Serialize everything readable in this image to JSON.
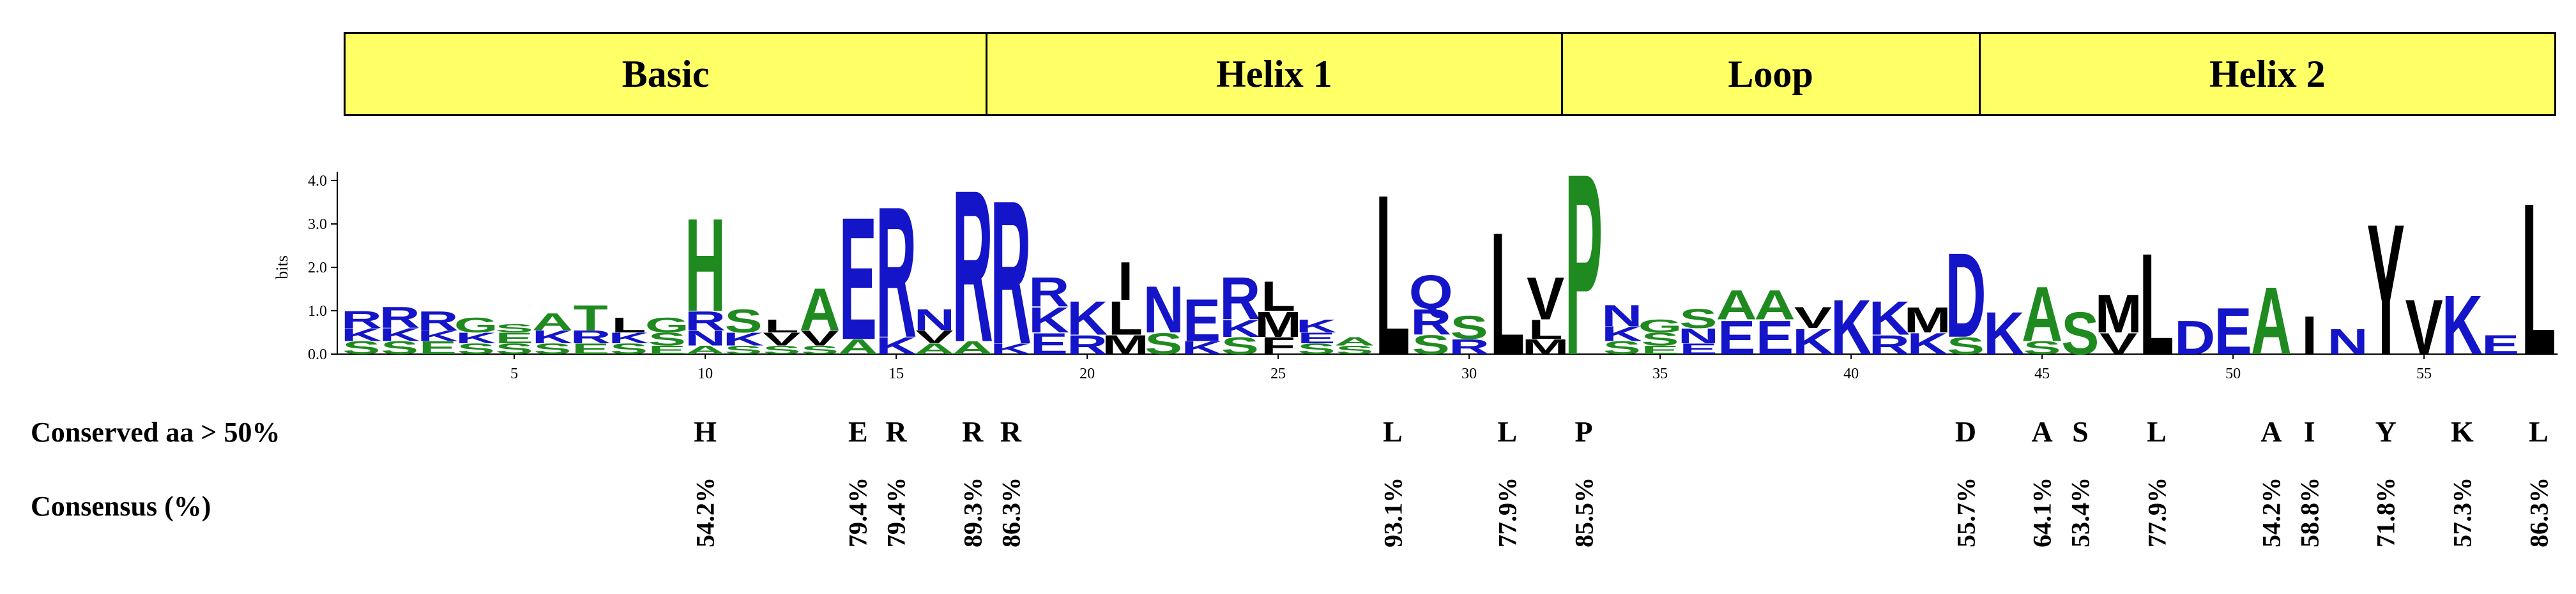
{
  "domains": [
    {
      "label": "Basic"
    },
    {
      "label": "Helix 1"
    },
    {
      "label": "Loop"
    },
    {
      "label": "Helix 2"
    }
  ],
  "logo": {
    "ylabel": "bits",
    "yticks": [
      "0.0",
      "1.0",
      "2.0",
      "3.0",
      "4.0"
    ],
    "xticks": [
      "5",
      "10",
      "15",
      "20",
      "25",
      "30",
      "35",
      "40",
      "45",
      "50",
      "55"
    ],
    "colors": {
      "green": "#1f8a1f",
      "blue": "#1414c8",
      "black": "#000000"
    },
    "columns": [
      {
        "pos": 1,
        "stack": [
          [
            "S",
            0.3,
            "green"
          ],
          [
            "K",
            0.3,
            "blue"
          ],
          [
            "R",
            0.4,
            "blue"
          ]
        ]
      },
      {
        "pos": 2,
        "stack": [
          [
            "S",
            0.3,
            "green"
          ],
          [
            "K",
            0.3,
            "blue"
          ],
          [
            "R",
            0.5,
            "blue"
          ]
        ]
      },
      {
        "pos": 3,
        "stack": [
          [
            "E",
            0.3,
            "green"
          ],
          [
            "K",
            0.25,
            "blue"
          ],
          [
            "R",
            0.45,
            "blue"
          ]
        ]
      },
      {
        "pos": 4,
        "stack": [
          [
            "S",
            0.25,
            "green"
          ],
          [
            "K",
            0.25,
            "blue"
          ],
          [
            "G",
            0.35,
            "green"
          ]
        ]
      },
      {
        "pos": 5,
        "stack": [
          [
            "S",
            0.25,
            "green"
          ],
          [
            "E",
            0.25,
            "green"
          ],
          [
            "S",
            0.2,
            "green"
          ]
        ]
      },
      {
        "pos": 6,
        "stack": [
          [
            "S",
            0.25,
            "green"
          ],
          [
            "K",
            0.3,
            "blue"
          ],
          [
            "A",
            0.4,
            "green"
          ]
        ]
      },
      {
        "pos": 7,
        "stack": [
          [
            "E",
            0.25,
            "green"
          ],
          [
            "R",
            0.3,
            "blue"
          ],
          [
            "T",
            0.6,
            "green"
          ]
        ]
      },
      {
        "pos": 8,
        "stack": [
          [
            "S",
            0.25,
            "green"
          ],
          [
            "K",
            0.25,
            "blue"
          ],
          [
            "L",
            0.35,
            "black"
          ]
        ]
      },
      {
        "pos": 9,
        "stack": [
          [
            "E",
            0.2,
            "green"
          ],
          [
            "S",
            0.3,
            "green"
          ],
          [
            "G",
            0.35,
            "green"
          ]
        ]
      },
      {
        "pos": 10,
        "stack": [
          [
            "A",
            0.2,
            "green"
          ],
          [
            "N",
            0.35,
            "blue"
          ],
          [
            "R",
            0.45,
            "blue"
          ],
          [
            "H",
            2.2,
            "green"
          ]
        ]
      },
      {
        "pos": 11,
        "stack": [
          [
            "S",
            0.2,
            "green"
          ],
          [
            "K",
            0.3,
            "blue"
          ],
          [
            "S",
            0.55,
            "green"
          ]
        ]
      },
      {
        "pos": 12,
        "stack": [
          [
            "S",
            0.2,
            "green"
          ],
          [
            "V",
            0.3,
            "black"
          ],
          [
            "L",
            0.3,
            "black"
          ]
        ]
      },
      {
        "pos": 13,
        "stack": [
          [
            "S",
            0.2,
            "green"
          ],
          [
            "V",
            0.35,
            "black"
          ],
          [
            "A",
            1.0,
            "green"
          ]
        ]
      },
      {
        "pos": 14,
        "stack": [
          [
            "A",
            0.35,
            "green"
          ],
          [
            "E",
            2.9,
            "blue"
          ]
        ]
      },
      {
        "pos": 15,
        "stack": [
          [
            "K",
            0.4,
            "blue"
          ],
          [
            "R",
            3.1,
            "blue"
          ]
        ]
      },
      {
        "pos": 16,
        "stack": [
          [
            "A",
            0.25,
            "green"
          ],
          [
            "V",
            0.3,
            "black"
          ],
          [
            "N",
            0.5,
            "blue"
          ]
        ]
      },
      {
        "pos": 17,
        "stack": [
          [
            "A",
            0.3,
            "green"
          ],
          [
            "R",
            3.6,
            "blue"
          ]
        ]
      },
      {
        "pos": 18,
        "stack": [
          [
            "K",
            0.25,
            "blue"
          ],
          [
            "R",
            3.4,
            "blue"
          ]
        ]
      },
      {
        "pos": 19,
        "stack": [
          [
            "E",
            0.5,
            "blue"
          ],
          [
            "K",
            0.6,
            "blue"
          ],
          [
            "R",
            0.7,
            "blue"
          ]
        ]
      },
      {
        "pos": 20,
        "stack": [
          [
            "R",
            0.45,
            "blue"
          ],
          [
            "K",
            0.8,
            "blue"
          ]
        ]
      },
      {
        "pos": 21,
        "stack": [
          [
            "M",
            0.45,
            "black"
          ],
          [
            "L",
            0.8,
            "black"
          ],
          [
            "I",
            0.9,
            "black"
          ]
        ]
      },
      {
        "pos": 22,
        "stack": [
          [
            "S",
            0.5,
            "green"
          ],
          [
            "N",
            1.1,
            "blue"
          ]
        ]
      },
      {
        "pos": 23,
        "stack": [
          [
            "K",
            0.3,
            "blue"
          ],
          [
            "E",
            1.0,
            "blue"
          ]
        ]
      },
      {
        "pos": 24,
        "stack": [
          [
            "S",
            0.4,
            "green"
          ],
          [
            "K",
            0.4,
            "blue"
          ],
          [
            "R",
            1.0,
            "blue"
          ]
        ]
      },
      {
        "pos": 25,
        "stack": [
          [
            "F",
            0.4,
            "black"
          ],
          [
            "M",
            0.6,
            "black"
          ],
          [
            "L",
            0.7,
            "black"
          ]
        ]
      },
      {
        "pos": 26,
        "stack": [
          [
            "S",
            0.25,
            "green"
          ],
          [
            "E",
            0.25,
            "blue"
          ],
          [
            "K",
            0.3,
            "blue"
          ]
        ]
      },
      {
        "pos": 27,
        "stack": [
          [
            "S",
            0.2,
            "green"
          ],
          [
            "A",
            0.2,
            "green"
          ]
        ]
      },
      {
        "pos": 28,
        "stack": [
          [
            "L",
            3.8,
            "black"
          ]
        ]
      },
      {
        "pos": 29,
        "stack": [
          [
            "S",
            0.45,
            "green"
          ],
          [
            "R",
            0.6,
            "blue"
          ],
          [
            "Q",
            0.8,
            "blue"
          ]
        ]
      },
      {
        "pos": 30,
        "stack": [
          [
            "R",
            0.35,
            "blue"
          ],
          [
            "S",
            0.55,
            "green"
          ]
        ]
      },
      {
        "pos": 31,
        "stack": [
          [
            "L",
            2.9,
            "black"
          ]
        ]
      },
      {
        "pos": 32,
        "stack": [
          [
            "M",
            0.35,
            "black"
          ],
          [
            "L",
            0.45,
            "black"
          ],
          [
            "V",
            1.0,
            "black"
          ]
        ]
      },
      {
        "pos": 33,
        "stack": [
          [
            "P",
            4.3,
            "green"
          ]
        ]
      },
      {
        "pos": 34,
        "stack": [
          [
            "S",
            0.3,
            "green"
          ],
          [
            "K",
            0.35,
            "blue"
          ],
          [
            "N",
            0.5,
            "blue"
          ]
        ]
      },
      {
        "pos": 35,
        "stack": [
          [
            "E",
            0.2,
            "green"
          ],
          [
            "S",
            0.3,
            "green"
          ],
          [
            "G",
            0.3,
            "green"
          ]
        ]
      },
      {
        "pos": 36,
        "stack": [
          [
            "E",
            0.25,
            "blue"
          ],
          [
            "N",
            0.35,
            "blue"
          ],
          [
            "S",
            0.45,
            "green"
          ]
        ]
      },
      {
        "pos": 37,
        "stack": [
          [
            "E",
            0.8,
            "blue"
          ],
          [
            "A",
            0.7,
            "green"
          ]
        ]
      },
      {
        "pos": 38,
        "stack": [
          [
            "E",
            0.8,
            "blue"
          ],
          [
            "A",
            0.7,
            "green"
          ]
        ]
      },
      {
        "pos": 39,
        "stack": [
          [
            "K",
            0.6,
            "blue"
          ],
          [
            "V",
            0.5,
            "black"
          ]
        ]
      },
      {
        "pos": 40,
        "stack": [
          [
            "K",
            1.3,
            "blue"
          ]
        ]
      },
      {
        "pos": 41,
        "stack": [
          [
            "R",
            0.45,
            "blue"
          ],
          [
            "K",
            0.8,
            "blue"
          ]
        ]
      },
      {
        "pos": 42,
        "stack": [
          [
            "K",
            0.5,
            "blue"
          ],
          [
            "M",
            0.6,
            "black"
          ]
        ]
      },
      {
        "pos": 43,
        "stack": [
          [
            "S",
            0.4,
            "green"
          ],
          [
            "D",
            2.0,
            "blue"
          ]
        ]
      },
      {
        "pos": 44,
        "stack": [
          [
            "K",
            1.0,
            "blue"
          ]
        ]
      },
      {
        "pos": 45,
        "stack": [
          [
            "S",
            0.3,
            "green"
          ],
          [
            "A",
            1.3,
            "green"
          ]
        ]
      },
      {
        "pos": 46,
        "stack": [
          [
            "S",
            1.0,
            "green"
          ]
        ]
      },
      {
        "pos": 47,
        "stack": [
          [
            "V",
            0.5,
            "black"
          ],
          [
            "M",
            0.9,
            "black"
          ]
        ]
      },
      {
        "pos": 48,
        "stack": [
          [
            "L",
            2.4,
            "black"
          ]
        ]
      },
      {
        "pos": 49,
        "stack": [
          [
            "D",
            0.8,
            "blue"
          ]
        ]
      },
      {
        "pos": 50,
        "stack": [
          [
            "E",
            1.1,
            "blue"
          ]
        ]
      },
      {
        "pos": 51,
        "stack": [
          [
            "A",
            1.6,
            "green"
          ]
        ]
      },
      {
        "pos": 52,
        "stack": [
          [
            "I",
            0.9,
            "black"
          ]
        ]
      },
      {
        "pos": 53,
        "stack": [
          [
            "N",
            0.6,
            "blue"
          ]
        ]
      },
      {
        "pos": 54,
        "stack": [
          [
            "Y",
            3.1,
            "black"
          ]
        ]
      },
      {
        "pos": 55,
        "stack": [
          [
            "V",
            1.3,
            "black"
          ]
        ]
      },
      {
        "pos": 56,
        "stack": [
          [
            "K",
            1.4,
            "blue"
          ]
        ]
      },
      {
        "pos": 57,
        "stack": [
          [
            "E",
            0.45,
            "blue"
          ]
        ]
      },
      {
        "pos": 58,
        "stack": [
          [
            "L",
            3.6,
            "black"
          ]
        ]
      }
    ]
  },
  "conserved": {
    "label": "Conserved aa > 50%",
    "items": [
      {
        "pos": 10,
        "aa": "H",
        "pct": "54.2%"
      },
      {
        "pos": 14,
        "aa": "E",
        "pct": "79.4%"
      },
      {
        "pos": 15,
        "aa": "R",
        "pct": "79.4%"
      },
      {
        "pos": 17,
        "aa": "R",
        "pct": "89.3%"
      },
      {
        "pos": 18,
        "aa": "R",
        "pct": "86.3%"
      },
      {
        "pos": 28,
        "aa": "L",
        "pct": "93.1%"
      },
      {
        "pos": 31,
        "aa": "L",
        "pct": "77.9%"
      },
      {
        "pos": 33,
        "aa": "P",
        "pct": "85.5%"
      },
      {
        "pos": 43,
        "aa": "D",
        "pct": "55.7%"
      },
      {
        "pos": 45,
        "aa": "A",
        "pct": "64.1%"
      },
      {
        "pos": 46,
        "aa": "S",
        "pct": "53.4%"
      },
      {
        "pos": 48,
        "aa": "L",
        "pct": "77.9%"
      },
      {
        "pos": 51,
        "aa": "A",
        "pct": "54.2%"
      },
      {
        "pos": 52,
        "aa": "I",
        "pct": "58.8%"
      },
      {
        "pos": 54,
        "aa": "Y",
        "pct": "71.8%"
      },
      {
        "pos": 56,
        "aa": "K",
        "pct": "57.3%"
      },
      {
        "pos": 58,
        "aa": "L",
        "pct": "86.3%"
      }
    ]
  },
  "consensus": {
    "label": "Consensus (%)"
  }
}
